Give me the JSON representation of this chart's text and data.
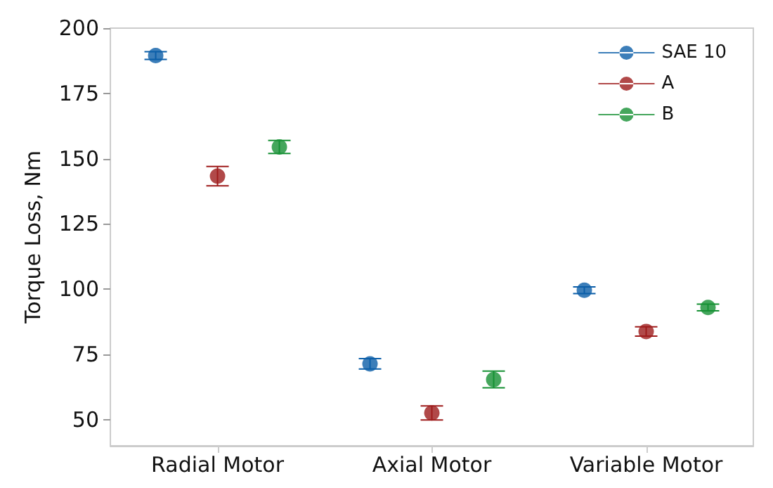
{
  "chart_data": {
    "type": "scatter",
    "ylabel": "Torque Loss, Nm",
    "categories": [
      "Radial Motor",
      "Axial Motor",
      "Variable Motor"
    ],
    "series": [
      {
        "name": "SAE 10",
        "color": "#0b5ea8",
        "values": [
          189.5,
          71.4,
          99.6
        ],
        "errors": [
          1.5,
          2,
          1.3
        ]
      },
      {
        "name": "A",
        "color": "#9e1b1b",
        "values": [
          143.3,
          52.6,
          83.8
        ],
        "errors": [
          3.7,
          2.7,
          1.8
        ]
      },
      {
        "name": "B",
        "color": "#159033",
        "values": [
          154.5,
          65.4,
          93
        ],
        "errors": [
          2.5,
          3.2,
          1.3
        ]
      }
    ],
    "ylim": [
      40,
      200
    ],
    "yticks": [
      50,
      75,
      100,
      125,
      150,
      175,
      200
    ],
    "marker": "circle",
    "grid": false,
    "legend": "top right"
  }
}
